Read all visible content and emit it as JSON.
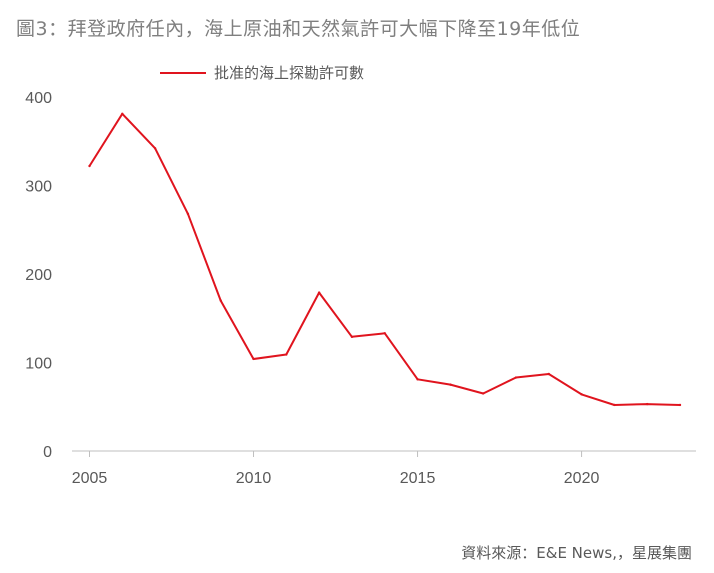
{
  "title": "圖3：拜登政府任內，海上原油和天然氣許可大幅下降至19年低位",
  "source": "資料來源：E&E News,，星展集團",
  "colors": {
    "series": "#e0141e",
    "axis": "#bfbfbf",
    "text": "#595959"
  },
  "chart_data": {
    "type": "line",
    "title": "圖3：拜登政府任內，海上原油和天然氣許可大幅下降至19年低位",
    "xlabel": "",
    "ylabel": "",
    "x": [
      2005,
      2006,
      2007,
      2008,
      2009,
      2010,
      2011,
      2012,
      2013,
      2014,
      2015,
      2016,
      2017,
      2018,
      2019,
      2020,
      2021,
      2022,
      2023
    ],
    "series": [
      {
        "name": "批准的海上探勘許可數",
        "values": [
          322,
          381,
          342,
          268,
          170,
          104,
          109,
          179,
          129,
          133,
          81,
          75,
          65,
          83,
          87,
          64,
          52,
          53,
          52
        ]
      }
    ],
    "xticks": [
      "2005",
      "2010",
      "2015",
      "2020"
    ],
    "yticks": [
      "0",
      "100",
      "200",
      "300",
      "400"
    ],
    "xlim": [
      2005,
      2023
    ],
    "ylim": [
      0,
      400
    ],
    "grid": false,
    "legend": "top-left"
  }
}
